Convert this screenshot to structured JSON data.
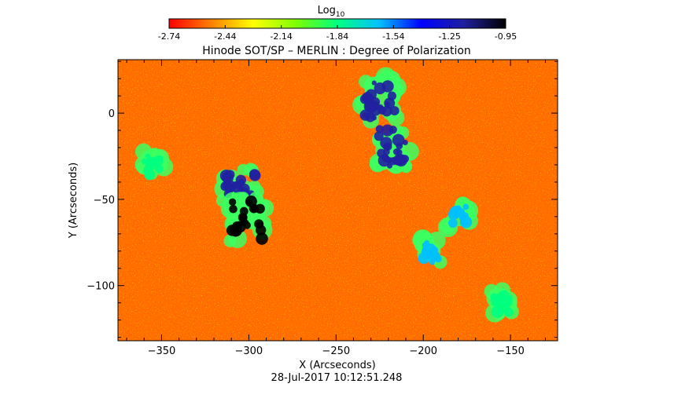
{
  "colorbar": {
    "label": "Log",
    "label_subscript": "10",
    "ticks": [
      "-2.74",
      "-2.44",
      "-2.14",
      "-1.84",
      "-1.54",
      "-1.25",
      "-0.95"
    ],
    "range": [
      -2.74,
      -0.95
    ],
    "colormap": [
      "#ff0000",
      "#ff7f00",
      "#ffff00",
      "#7fff00",
      "#00ff80",
      "#00c0ff",
      "#0000ff",
      "#2020a0",
      "#000000"
    ]
  },
  "chart_data": {
    "type": "heatmap",
    "title": "Hinode SOT/SP – MERLIN : Degree of Polarization",
    "xlabel": "X (Arcseconds)",
    "ylabel": "Y (Arcseconds)",
    "xlim": [
      -375,
      -123
    ],
    "ylim": [
      -132,
      31
    ],
    "xticks": [
      -350,
      -300,
      -250,
      -200,
      -150
    ],
    "xtick_labels": [
      "−350",
      "−300",
      "−250",
      "−200",
      "−150"
    ],
    "yticks": [
      0,
      -50,
      -100
    ],
    "ytick_labels": [
      "0",
      "−50",
      "−100"
    ],
    "grid": false,
    "background_level": -2.55,
    "regions": [
      {
        "x": -305,
        "y": -45,
        "level": -1.25
      },
      {
        "x": -301,
        "y": -62,
        "level": -0.95
      },
      {
        "x": -225,
        "y": 8,
        "level": -1.1
      },
      {
        "x": -218,
        "y": -20,
        "level": -1.25
      },
      {
        "x": -196,
        "y": -80,
        "level": -1.6
      },
      {
        "x": -180,
        "y": -60,
        "level": -1.7
      },
      {
        "x": -155,
        "y": -110,
        "level": -1.9
      },
      {
        "x": -355,
        "y": -30,
        "level": -1.8
      }
    ],
    "timestamp": "28-Jul-2017 10:12:51.248"
  }
}
